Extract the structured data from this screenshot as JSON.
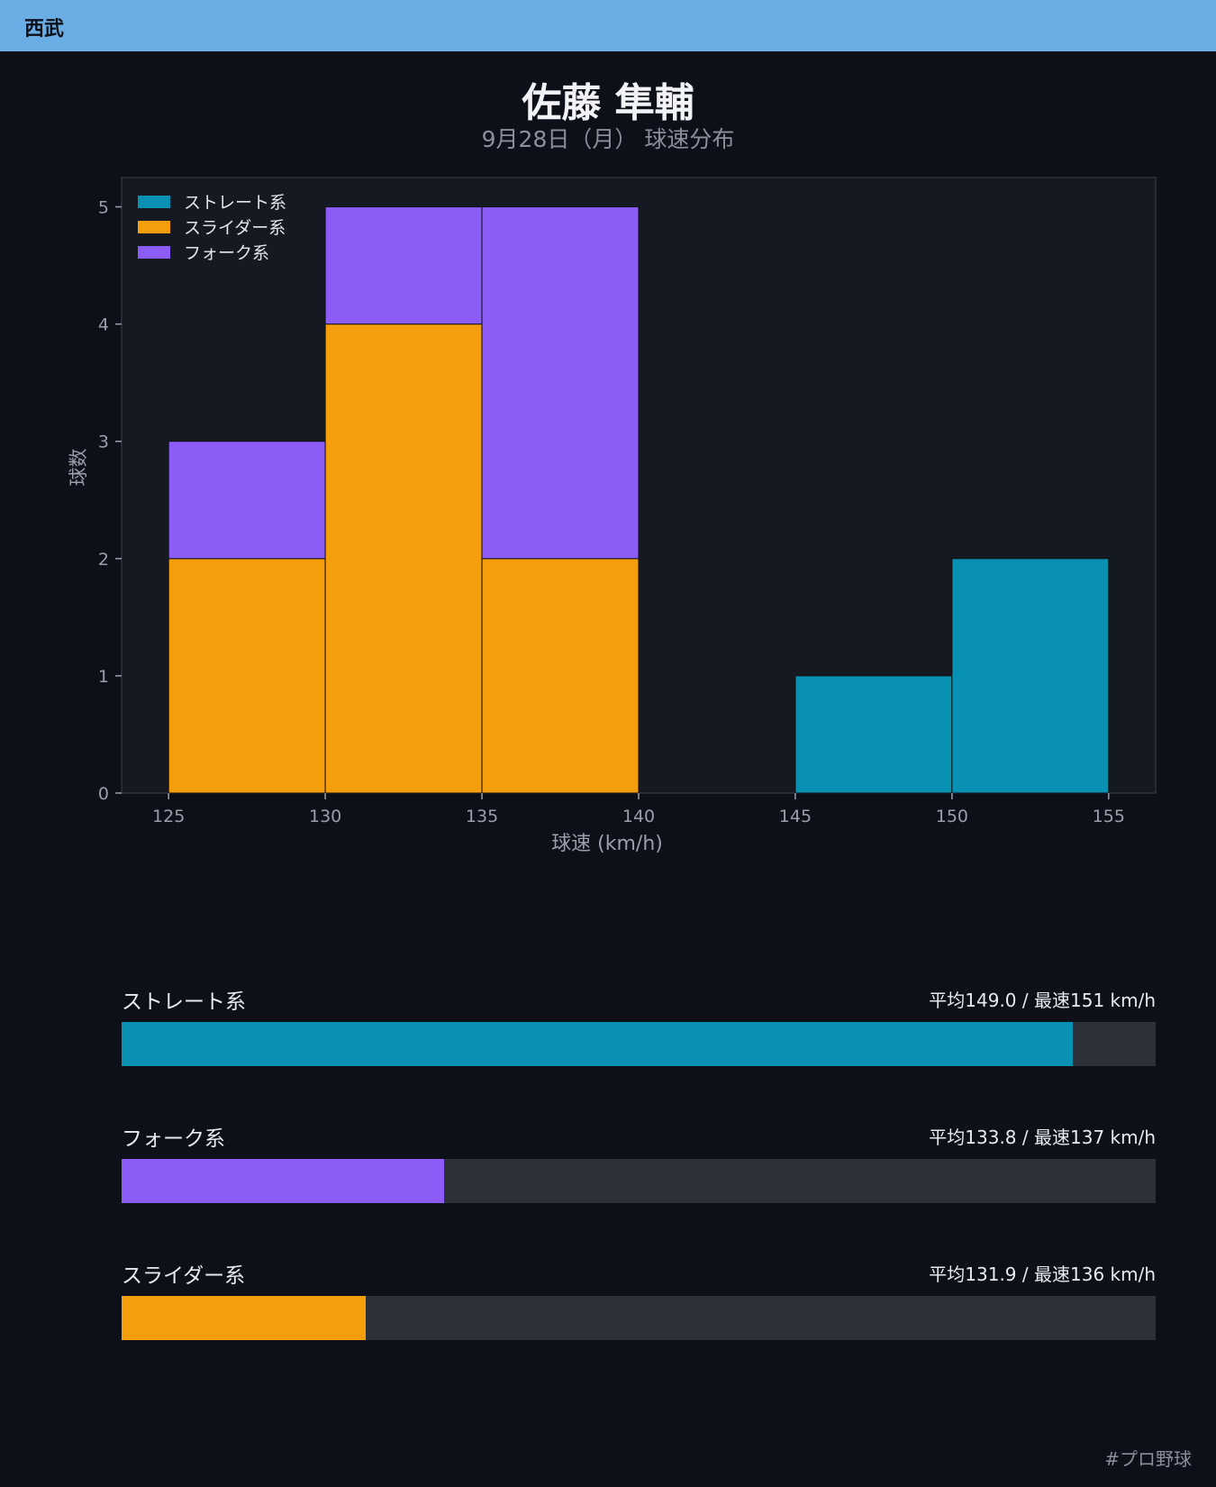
{
  "header": {
    "team": "西武"
  },
  "title": "佐藤 隼輔",
  "subtitle": "9月28日（月） 球速分布",
  "chart_data": {
    "type": "bar",
    "stacked": true,
    "bin_edges": [
      125,
      130,
      135,
      140,
      145,
      150,
      155
    ],
    "series": [
      {
        "name": "ストレート系",
        "color": "#0891b2",
        "values": [
          0,
          0,
          0,
          0,
          1,
          2
        ]
      },
      {
        "name": "スライダー系",
        "color": "#f59e0b",
        "values": [
          2,
          4,
          2,
          0,
          0,
          0
        ]
      },
      {
        "name": "フォーク系",
        "color": "#8b5cf6",
        "values": [
          1,
          1,
          3,
          0,
          0,
          0
        ]
      }
    ],
    "xlabel": "球速 (km/h)",
    "ylabel": "球数",
    "xticks": [
      125,
      130,
      135,
      140,
      145,
      150,
      155
    ],
    "yticks": [
      0,
      1,
      2,
      3,
      4,
      5
    ],
    "xlim": [
      123.5,
      156.5
    ],
    "ylim": [
      0,
      5.25
    ],
    "grid": false,
    "legend_position": "top-left"
  },
  "summary": [
    {
      "name": "ストレート系",
      "stats": "平均149.0 / 最速151 km/h",
      "fill_fraction": 0.92,
      "color": "#0891b2"
    },
    {
      "name": "フォーク系",
      "stats": "平均133.8 / 最速137 km/h",
      "fill_fraction": 0.312,
      "color": "#8b5cf6"
    },
    {
      "name": "スライダー系",
      "stats": "平均131.9 / 最速136 km/h",
      "fill_fraction": 0.236,
      "color": "#f59e0b"
    }
  ],
  "footer": {
    "hashtag": "#プロ野球"
  }
}
